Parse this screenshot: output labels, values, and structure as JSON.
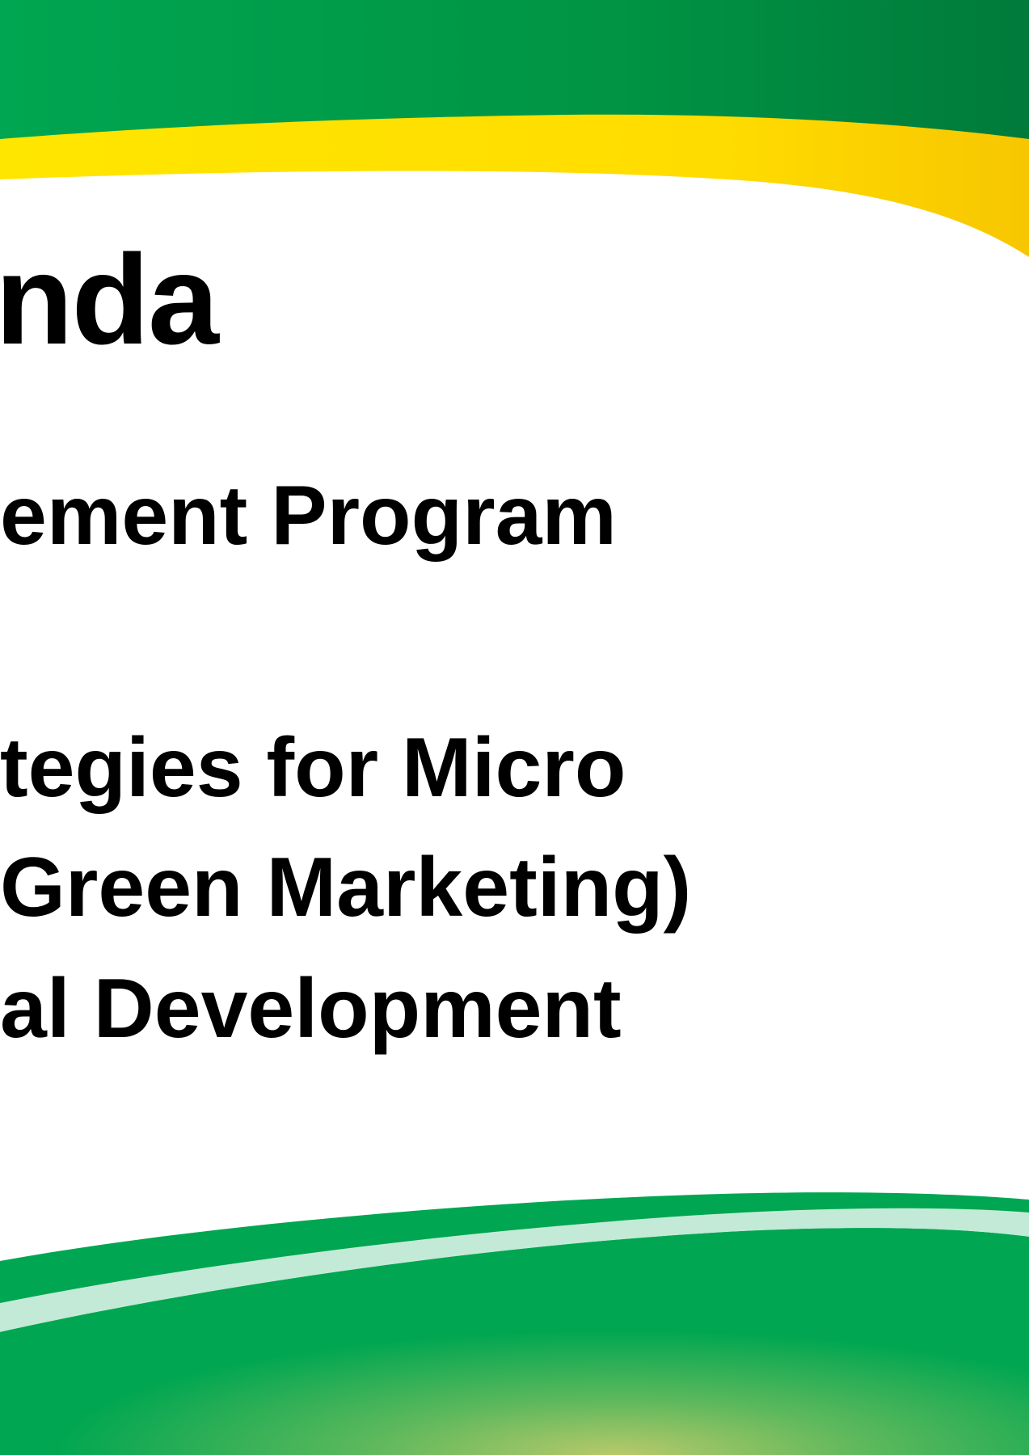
{
  "slide": {
    "title": "nda",
    "items": [
      "ement Program",
      "tegies for Micro",
      "Green Marketing)",
      "al Development"
    ]
  },
  "colors": {
    "dark_green": "#007a3a",
    "bright_green": "#00a651",
    "yellow": "#ffd200",
    "light_mint": "#c3ead6",
    "lime_glow": "#b8c96a",
    "text": "#000000"
  }
}
